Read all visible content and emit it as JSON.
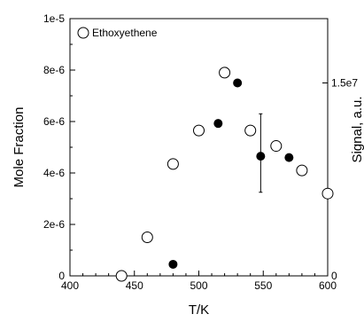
{
  "chart_data": {
    "type": "scatter",
    "xlabel": "T/K",
    "ylabel": "Mole Fraction",
    "y2label": "Signal, a.u.",
    "xlim": [
      400,
      600
    ],
    "ylim": [
      0,
      1e-05
    ],
    "y2lim": [
      0,
      20000000.0
    ],
    "x_ticks": [
      400,
      450,
      500,
      550,
      600
    ],
    "x_tick_labels": [
      "400",
      "450",
      "500",
      "550",
      "600"
    ],
    "y_ticks": [
      0,
      2e-06,
      4e-06,
      6e-06,
      8e-06,
      1e-05
    ],
    "y_tick_labels": [
      "0",
      "2e-6",
      "4e-6",
      "6e-6",
      "8e-6",
      "1e-5"
    ],
    "y2_ticks": [
      0,
      15000000.0
    ],
    "y2_tick_labels": [
      "0",
      "1.5e7"
    ],
    "grid": false,
    "legend_position": "top-left",
    "series": [
      {
        "name": "Ethoxyethene",
        "marker": "open-circle",
        "axis": "left",
        "x": [
          440,
          460,
          480,
          500,
          520,
          540,
          560,
          580,
          600
        ],
        "y": [
          0.0,
          1.5e-06,
          4.35e-06,
          5.65e-06,
          7.9e-06,
          5.65e-06,
          5.05e-06,
          4.1e-06,
          3.2e-06
        ]
      },
      {
        "marker": "filled-circle",
        "axis": "right",
        "x": [
          480,
          515,
          530,
          548,
          570
        ],
        "y": [
          900000.0,
          11850000.0,
          15000000.0,
          9300000.0,
          9200000.0
        ]
      }
    ],
    "error_bar": {
      "x": 548,
      "y_low": 6500000.0,
      "y_high": 12600000.0
    }
  }
}
